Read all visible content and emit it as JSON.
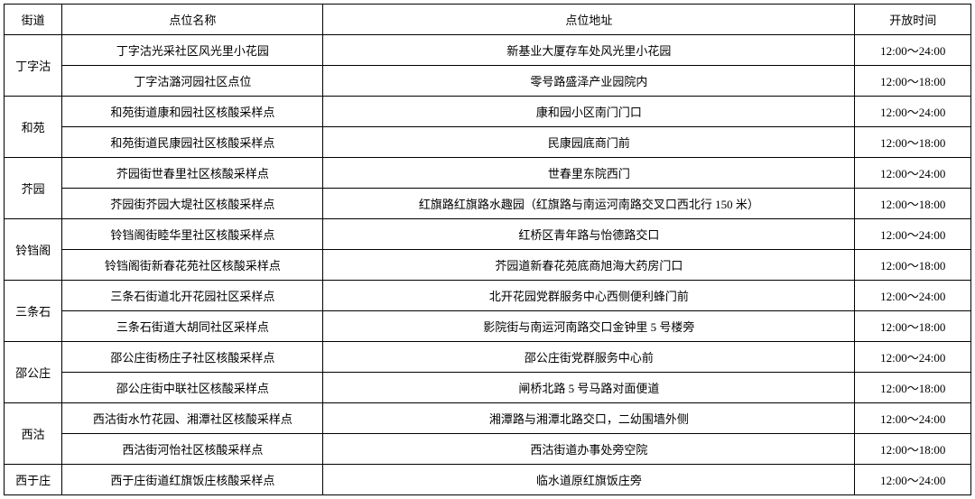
{
  "headers": {
    "street": "街道",
    "name": "点位名称",
    "address": "点位地址",
    "time": "开放时间"
  },
  "groups": [
    {
      "street": "丁字沽",
      "rows": [
        {
          "name": "丁字沽光采社区风光里小花园",
          "address": "新基业大厦存车处风光里小花园",
          "time": "12:00～24:00"
        },
        {
          "name": "丁字沽潞河园社区点位",
          "address": "零号路盛泽产业园院内",
          "time": "12:00～18:00"
        }
      ]
    },
    {
      "street": "和苑",
      "rows": [
        {
          "name": "和苑街道康和园社区核酸采样点",
          "address": "康和园小区南门门口",
          "time": "12:00～24:00"
        },
        {
          "name": "和苑街道民康园社区核酸采样点",
          "address": "民康园底商门前",
          "time": "12:00～18:00"
        }
      ]
    },
    {
      "street": "芥园",
      "rows": [
        {
          "name": "芥园街世春里社区核酸采样点",
          "address": "世春里东院西门",
          "time": "12:00～24:00"
        },
        {
          "name": "芥园街芥园大堤社区核酸采样点",
          "address": "红旗路红旗路水趣园（红旗路与南运河南路交叉口西北行 150 米）",
          "time": "12:00～18:00"
        }
      ]
    },
    {
      "street": "铃铛阁",
      "rows": [
        {
          "name": "铃铛阁街睦华里社区核酸采样点",
          "address": "红桥区青年路与怡德路交口",
          "time": "12:00～24:00"
        },
        {
          "name": "铃铛阁街新春花苑社区核酸采样点",
          "address": "芥园道新春花苑底商旭海大药房门口",
          "time": "12:00～18:00"
        }
      ]
    },
    {
      "street": "三条石",
      "rows": [
        {
          "name": "三条石街道北开花园社区采样点",
          "address": "北开花园党群服务中心西侧便利蜂门前",
          "time": "12:00～24:00"
        },
        {
          "name": "三条石街道大胡同社区采样点",
          "address": "影院街与南运河南路交口金钟里 5 号楼旁",
          "time": "12:00～18:00"
        }
      ]
    },
    {
      "street": "邵公庄",
      "rows": [
        {
          "name": "邵公庄街杨庄子社区核酸采样点",
          "address": "邵公庄街党群服务中心前",
          "time": "12:00～24:00"
        },
        {
          "name": "邵公庄街中联社区核酸采样点",
          "address": "闸桥北路 5 号马路对面便道",
          "time": "12:00～18:00"
        }
      ]
    },
    {
      "street": "西沽",
      "rows": [
        {
          "name": "西沽街水竹花园、湘潭社区核酸采样点",
          "address": "湘潭路与湘潭北路交口，二幼围墙外侧",
          "time": "12:00～24:00"
        },
        {
          "name": "西沽街河怡社区核酸采样点",
          "address": "西沽街道办事处旁空院",
          "time": "12:00～18:00"
        }
      ]
    },
    {
      "street": "西于庄",
      "rows": [
        {
          "name": "西于庄街道红旗饭庄核酸采样点",
          "address": "临水道原红旗饭庄旁",
          "time": "12:00～24:00"
        }
      ]
    }
  ]
}
